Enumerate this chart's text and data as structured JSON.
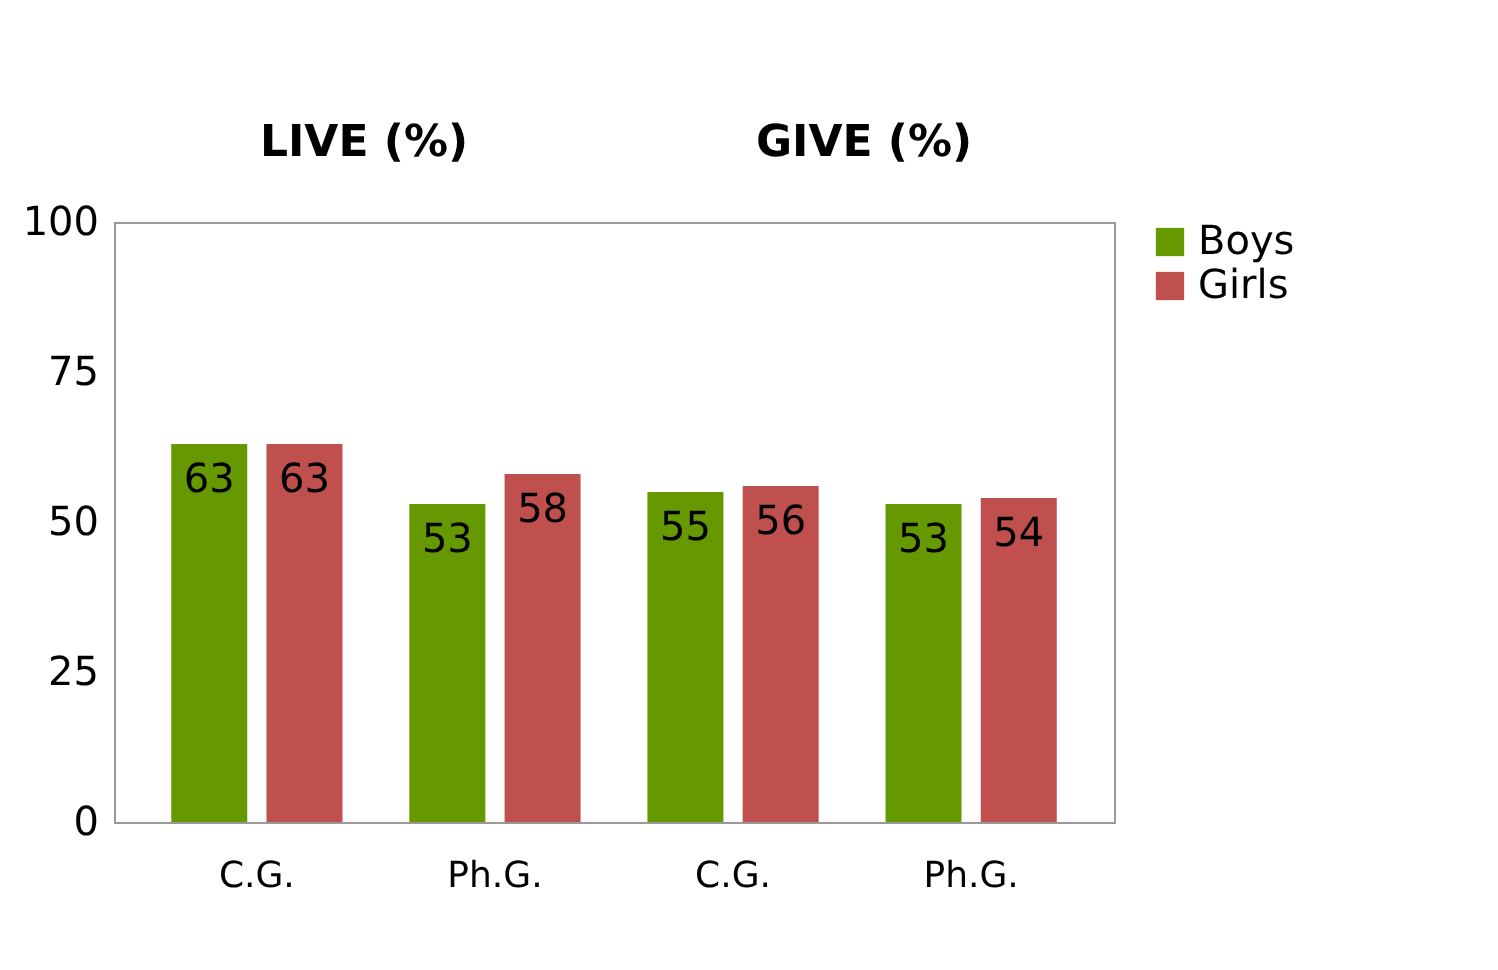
{
  "chart_data": {
    "type": "bar",
    "categories": [
      "C.G.",
      "Ph.G.",
      "C.G.",
      "Ph.G."
    ],
    "series": [
      {
        "name": "Boys",
        "color": "#669900",
        "values": [
          63,
          53,
          55,
          53
        ]
      },
      {
        "name": "Girls",
        "color": "#c0504d",
        "values": [
          63,
          58,
          56,
          54
        ]
      }
    ],
    "ylim": [
      0,
      100
    ],
    "yticks": [
      0,
      25,
      50,
      75,
      100
    ],
    "data_labels": true,
    "grid": false,
    "legend": "right",
    "annotations": [
      "LIVE (%)",
      "GIVE (%)"
    ]
  }
}
